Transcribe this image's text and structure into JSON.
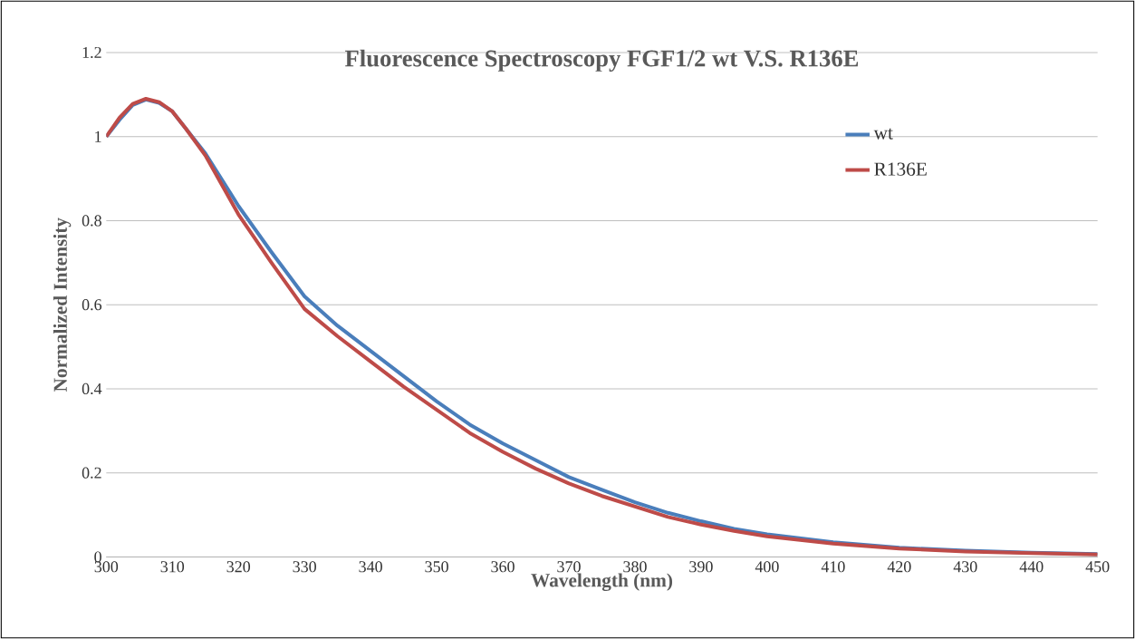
{
  "chart_data": {
    "type": "line",
    "title": "Fluorescence Spectroscopy FGF1/2 wt V.S. R136E",
    "xlabel": "Wavelength (nm)",
    "ylabel": "Normalized  Intensity",
    "x": [
      300,
      302,
      304,
      306,
      308,
      310,
      312,
      315,
      320,
      325,
      330,
      335,
      340,
      345,
      350,
      355,
      360,
      365,
      370,
      375,
      380,
      385,
      390,
      395,
      400,
      410,
      420,
      430,
      440,
      450
    ],
    "series": [
      {
        "name": "wt",
        "color": "#4a7ebb",
        "values": [
          1.0,
          1.04,
          1.075,
          1.088,
          1.08,
          1.06,
          1.02,
          0.96,
          0.835,
          0.725,
          0.62,
          0.55,
          0.49,
          0.43,
          0.37,
          0.315,
          0.27,
          0.23,
          0.19,
          0.16,
          0.13,
          0.105,
          0.085,
          0.067,
          0.054,
          0.035,
          0.022,
          0.015,
          0.01,
          0.007
        ]
      },
      {
        "name": "R136E",
        "color": "#be4b48",
        "values": [
          1.0,
          1.045,
          1.078,
          1.09,
          1.082,
          1.06,
          1.02,
          0.955,
          0.815,
          0.7,
          0.59,
          0.525,
          0.465,
          0.405,
          0.35,
          0.295,
          0.25,
          0.21,
          0.175,
          0.145,
          0.12,
          0.095,
          0.077,
          0.062,
          0.049,
          0.032,
          0.02,
          0.013,
          0.009,
          0.006
        ]
      }
    ],
    "xlim": [
      300,
      450
    ],
    "xticks": [
      300,
      310,
      320,
      330,
      340,
      350,
      360,
      370,
      380,
      390,
      400,
      410,
      420,
      430,
      440,
      450
    ],
    "ylim": [
      0,
      1.2
    ],
    "yticks": [
      0,
      0.2,
      0.4,
      0.6,
      0.8,
      1,
      1.2
    ],
    "grid": "y",
    "legend": "top right",
    "marker": "none",
    "line_style": "solid"
  }
}
